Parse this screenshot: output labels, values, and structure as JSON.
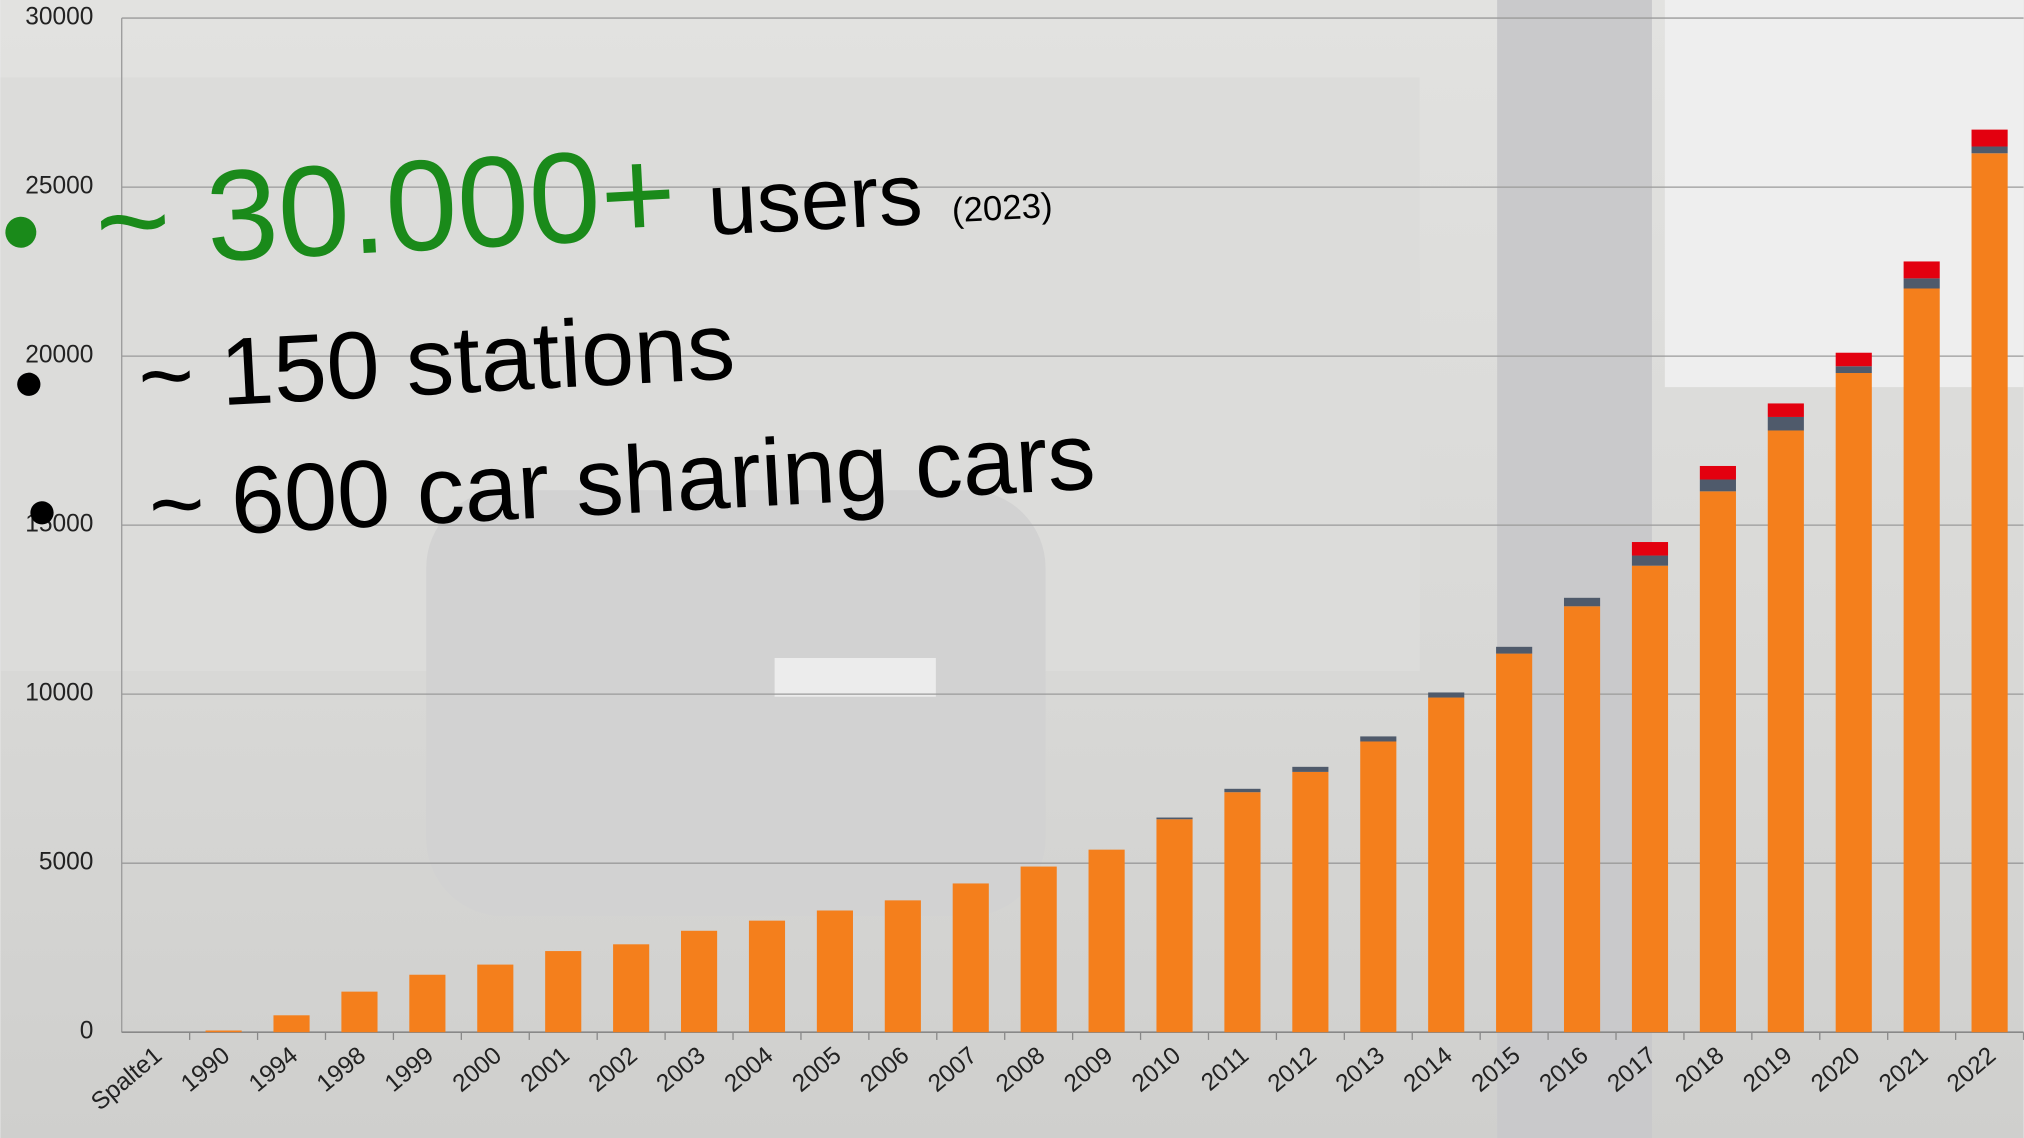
{
  "chart_data": {
    "type": "stacked-bar",
    "categories": [
      "Spalte1",
      "1990",
      "1994",
      "1998",
      "1999",
      "2000",
      "2001",
      "2002",
      "2003",
      "2004",
      "2005",
      "2006",
      "2007",
      "2008",
      "2009",
      "2010",
      "2011",
      "2012",
      "2013",
      "2014",
      "2015",
      "2016",
      "2017",
      "2018",
      "2019",
      "2020",
      "2021",
      "2022"
    ],
    "series": [
      {
        "color": "#f47f1c",
        "values": [
          0,
          50,
          500,
          1200,
          1700,
          2000,
          2400,
          2600,
          3000,
          3300,
          3600,
          3900,
          4400,
          4900,
          5400,
          6300,
          7100,
          7700,
          8600,
          9900,
          11200,
          12600,
          13800,
          16000,
          17800,
          19500,
          22000,
          26000
        ]
      },
      {
        "color": "#4f5a6b",
        "values": [
          0,
          0,
          0,
          0,
          0,
          0,
          0,
          0,
          0,
          0,
          0,
          0,
          0,
          0,
          0,
          50,
          100,
          150,
          150,
          150,
          200,
          250,
          300,
          350,
          400,
          200,
          300,
          200
        ]
      },
      {
        "color": "#e3000f",
        "values": [
          0,
          0,
          0,
          0,
          0,
          0,
          0,
          0,
          0,
          0,
          0,
          0,
          0,
          0,
          0,
          0,
          0,
          0,
          0,
          0,
          0,
          0,
          400,
          400,
          400,
          400,
          500,
          500
        ]
      }
    ],
    "ylim": [
      0,
      30000
    ],
    "yticks": [
      0,
      5000,
      10000,
      15000,
      20000,
      25000,
      30000
    ],
    "grid": true,
    "annotations": {
      "main": "~ 30.000+",
      "main_color": "#1a8a1a",
      "unit": "users",
      "year": "(2023)",
      "bullets": [
        "~ 150 stations",
        "~ 600 car sharing cars"
      ]
    }
  }
}
